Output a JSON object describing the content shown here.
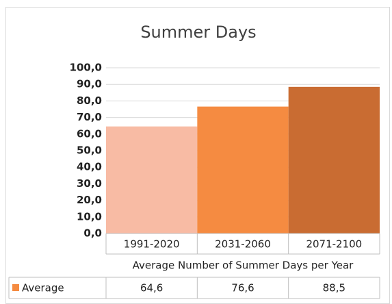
{
  "chart_data": {
    "type": "bar",
    "title": "Summer Days",
    "x_label": "Average Number of Summer Days per Year",
    "categories": [
      "1991-2020",
      "2031-2060",
      "2071-2100"
    ],
    "series": [
      {
        "name": "Average",
        "color": "#f58b41",
        "point_colors": [
          "#f8bba4",
          "#f58b41",
          "#c96c32"
        ],
        "values": [
          64.6,
          76.6,
          88.5
        ],
        "value_labels": [
          "64,6",
          "76,6",
          "88,5"
        ]
      }
    ],
    "ylim": [
      0,
      100
    ],
    "yticks": [
      {
        "value": 0,
        "label": "0,0"
      },
      {
        "value": 10,
        "label": "10,0"
      },
      {
        "value": 20,
        "label": "20,0"
      },
      {
        "value": 30,
        "label": "30,0"
      },
      {
        "value": 40,
        "label": "40,0"
      },
      {
        "value": 50,
        "label": "50,0"
      },
      {
        "value": 60,
        "label": "60,0"
      },
      {
        "value": 70,
        "label": "70,0"
      },
      {
        "value": 80,
        "label": "80,0"
      },
      {
        "value": 90,
        "label": "90,0"
      },
      {
        "value": 100,
        "label": "100,0"
      }
    ],
    "grid": true,
    "data_table": true
  }
}
